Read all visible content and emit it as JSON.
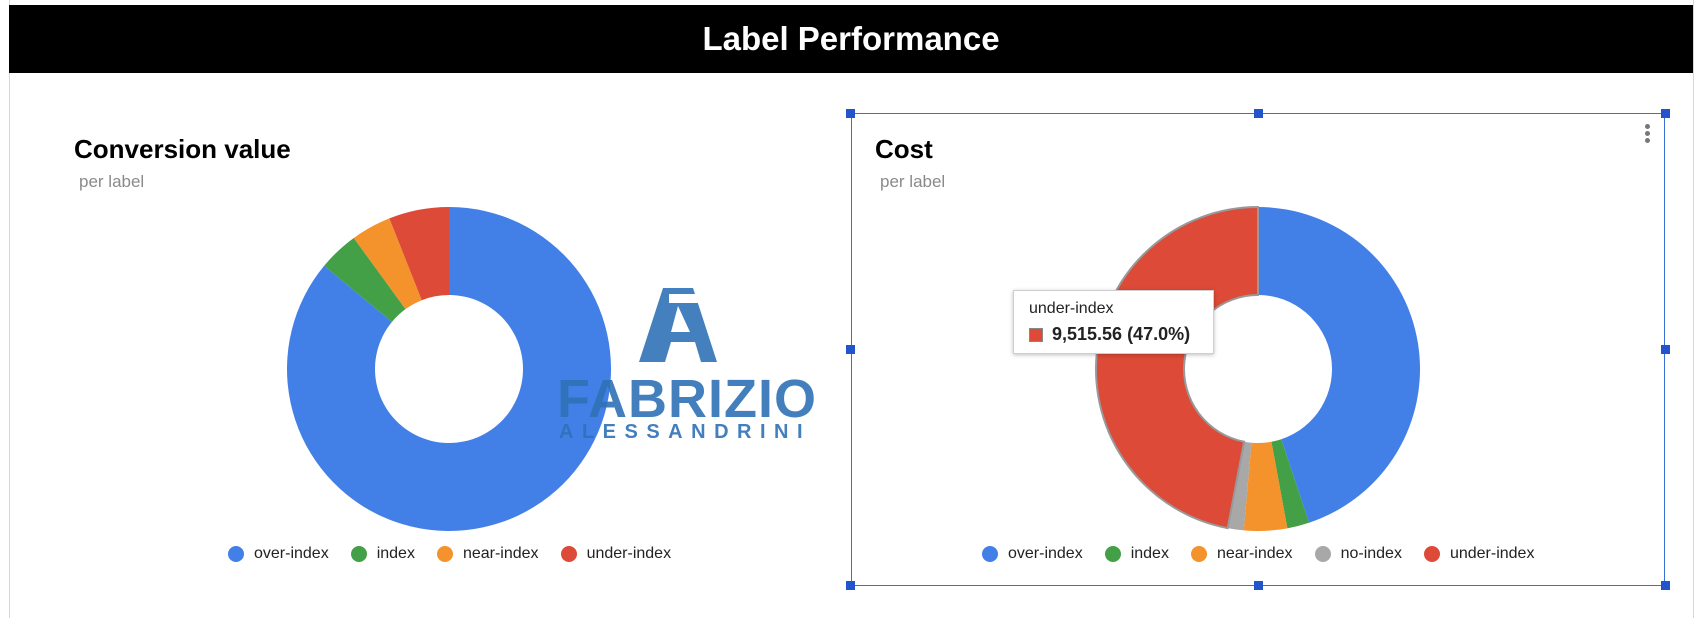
{
  "header": {
    "title": "Label Performance"
  },
  "colors": {
    "over-index": "#4280e8",
    "index": "#43a047",
    "near-index": "#f4922b",
    "no-index": "#a8a8a8",
    "under-index": "#dd4a37"
  },
  "chart_data": [
    {
      "type": "pie",
      "donut": true,
      "title": "Conversion value",
      "subtitle": "per label",
      "categories": [
        "over-index",
        "index",
        "near-index",
        "under-index"
      ],
      "values": [
        86.0,
        4.0,
        4.0,
        6.0
      ],
      "legend_position": "bottom"
    },
    {
      "type": "pie",
      "donut": true,
      "title": "Cost",
      "subtitle": "per label",
      "categories": [
        "over-index",
        "index",
        "near-index",
        "no-index",
        "under-index"
      ],
      "values": [
        44.9,
        2.2,
        4.3,
        1.6,
        47.0
      ],
      "legend_position": "bottom",
      "tooltip": {
        "label": "under-index",
        "value": "9,515.56 (47.0%)"
      }
    }
  ],
  "watermark": {
    "line1": "FABRIZIO",
    "line2": "ALESSANDRINI"
  }
}
